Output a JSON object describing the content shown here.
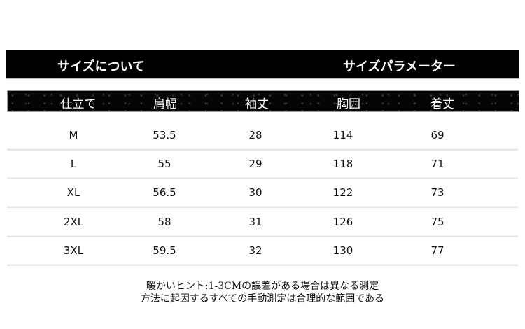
{
  "banner": {
    "left": "サイズについて",
    "right": "サイズパラメーター"
  },
  "table": {
    "headers": [
      "仕立て",
      "肩幅",
      "袖丈",
      "胸囲",
      "着丈"
    ],
    "rows": [
      [
        "M",
        "53.5",
        "28",
        "114",
        "69"
      ],
      [
        "L",
        "55",
        "29",
        "118",
        "71"
      ],
      [
        "XL",
        "56.5",
        "30",
        "122",
        "73"
      ],
      [
        "2XL",
        "58",
        "31",
        "126",
        "75"
      ],
      [
        "3XL",
        "59.5",
        "32",
        "130",
        "77"
      ]
    ]
  },
  "note": {
    "line1": "暖かいヒント:1-3CMの誤差がある場合は異なる測定",
    "line2": "方法に起因するすべての手動測定は合理的な範囲である"
  }
}
